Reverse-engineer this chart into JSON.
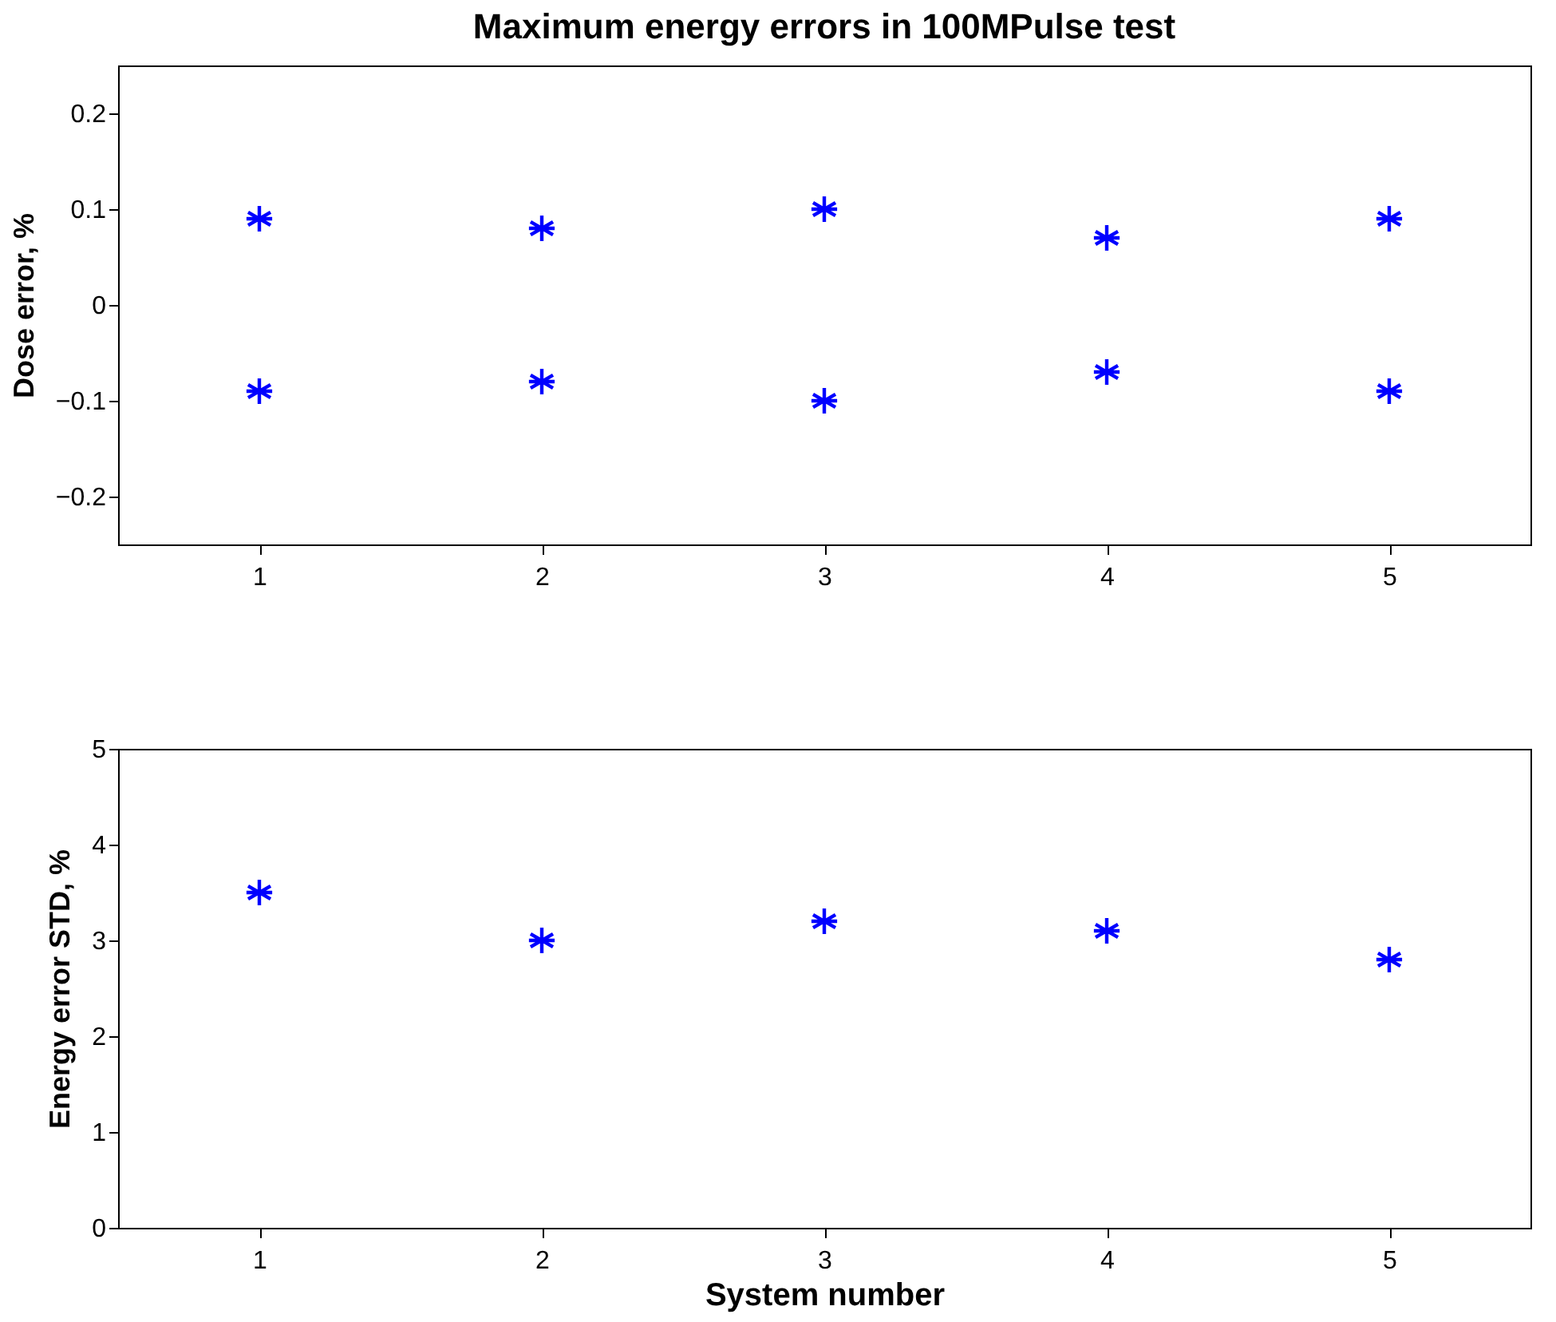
{
  "chart_data": [
    {
      "type": "scatter",
      "title": "Maximum energy errors in 100MPulse test",
      "ylabel": "Dose error, %",
      "x": [
        1,
        2,
        3,
        4,
        5
      ],
      "xlim": [
        0.5,
        5.5
      ],
      "xticks": [
        1,
        2,
        3,
        4,
        5
      ],
      "ylim": [
        -0.25,
        0.25
      ],
      "yticks": [
        -0.2,
        -0.1,
        0,
        0.1,
        0.2
      ],
      "marker": "cross",
      "grid": false,
      "legend": false,
      "series": [
        {
          "color": "#0000ff",
          "values": [
            0.09,
            0.08,
            0.1,
            0.07,
            0.09
          ]
        },
        {
          "color": "#0000ff",
          "values": [
            -0.09,
            -0.08,
            -0.1,
            -0.07,
            -0.09
          ]
        }
      ]
    },
    {
      "type": "scatter",
      "xlabel": "System number",
      "ylabel": "Energy error STD, %",
      "x": [
        1,
        2,
        3,
        4,
        5
      ],
      "xlim": [
        0.5,
        5.5
      ],
      "xticks": [
        1,
        2,
        3,
        4,
        5
      ],
      "ylim": [
        0,
        5
      ],
      "yticks": [
        0,
        1,
        2,
        3,
        4,
        5
      ],
      "marker": "cross",
      "grid": false,
      "legend": false,
      "series": [
        {
          "color": "#0000ff",
          "values": [
            3.5,
            3.0,
            3.2,
            3.1,
            2.8
          ]
        }
      ]
    }
  ]
}
